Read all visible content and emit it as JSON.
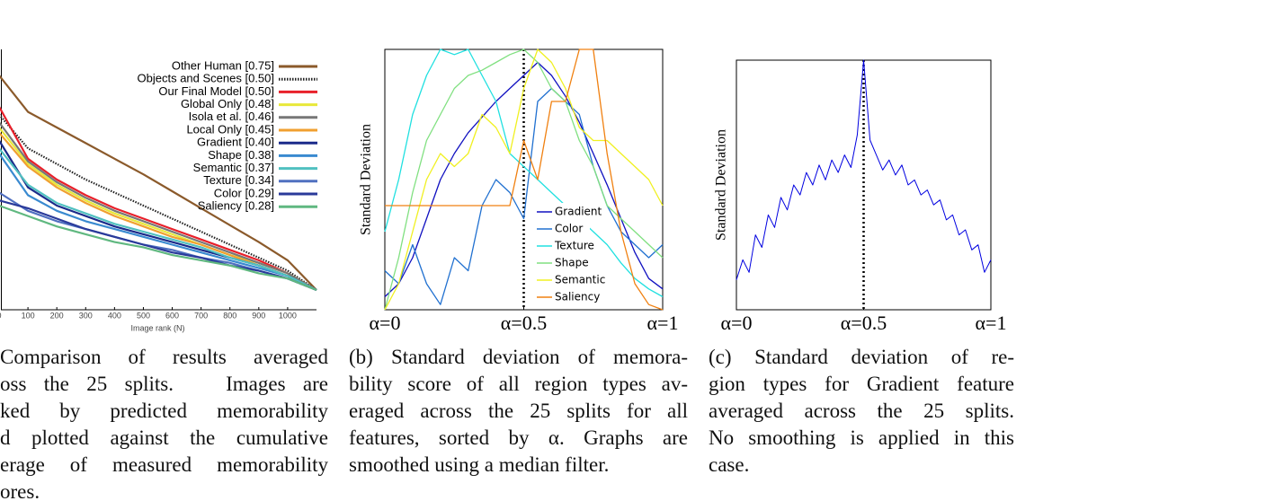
{
  "chart_data": [
    {
      "type": "line",
      "x_label": "Image rank (N)",
      "legend": "upper right",
      "x": [
        0,
        100,
        200,
        300,
        400,
        500,
        600,
        700,
        800,
        900,
        1000,
        1100
      ],
      "xlim": [
        0,
        1100
      ],
      "ylim": [
        0,
        1
      ],
      "xticks": [
        0,
        100,
        200,
        300,
        400,
        500,
        600,
        700,
        800,
        900,
        1000
      ],
      "series": [
        {
          "name": "Other Human [0.75]",
          "color": "#8b5a2b",
          "values": [
            0.9,
            0.76,
            0.7,
            0.64,
            0.58,
            0.52,
            0.455,
            0.39,
            0.325,
            0.26,
            0.19,
            0.076
          ]
        },
        {
          "name": "Objects and Scenes [0.50]",
          "color": "#222222",
          "dash": "dotted",
          "values": [
            0.75,
            0.62,
            0.56,
            0.5,
            0.45,
            0.4,
            0.35,
            0.3,
            0.25,
            0.2,
            0.15,
            0.076
          ]
        },
        {
          "name": "Our Final Model [0.50]",
          "color": "#e8202a",
          "values": [
            0.78,
            0.58,
            0.5,
            0.44,
            0.39,
            0.35,
            0.31,
            0.27,
            0.23,
            0.19,
            0.14,
            0.076
          ]
        },
        {
          "name": "Global Only [0.48]",
          "color": "#e8e83a",
          "values": [
            0.7,
            0.56,
            0.48,
            0.42,
            0.37,
            0.33,
            0.29,
            0.25,
            0.21,
            0.18,
            0.14,
            0.076
          ]
        },
        {
          "name": "Isola et al. [0.46]",
          "color": "#777777",
          "values": [
            0.72,
            0.57,
            0.49,
            0.43,
            0.38,
            0.34,
            0.3,
            0.26,
            0.22,
            0.18,
            0.14,
            0.076
          ]
        },
        {
          "name": "Local Only [0.45]",
          "color": "#f0a030",
          "values": [
            0.68,
            0.55,
            0.47,
            0.41,
            0.36,
            0.32,
            0.28,
            0.25,
            0.21,
            0.17,
            0.13,
            0.076
          ]
        },
        {
          "name": "Gradient [0.40]",
          "color": "#1a2a8a",
          "values": [
            0.65,
            0.47,
            0.4,
            0.36,
            0.32,
            0.29,
            0.26,
            0.23,
            0.2,
            0.17,
            0.13,
            0.076
          ]
        },
        {
          "name": "Shape [0.38]",
          "color": "#3a8ad0",
          "values": [
            0.6,
            0.44,
            0.38,
            0.34,
            0.31,
            0.28,
            0.25,
            0.22,
            0.19,
            0.16,
            0.13,
            0.076
          ]
        },
        {
          "name": "Semantic [0.37]",
          "color": "#50c0c0",
          "values": [
            0.62,
            0.48,
            0.41,
            0.37,
            0.33,
            0.3,
            0.27,
            0.24,
            0.2,
            0.17,
            0.13,
            0.076
          ]
        },
        {
          "name": "Texture [0.34]",
          "color": "#5070c0",
          "values": [
            0.45,
            0.38,
            0.34,
            0.31,
            0.28,
            0.25,
            0.23,
            0.2,
            0.18,
            0.15,
            0.12,
            0.076
          ]
        },
        {
          "name": "Color [0.29]",
          "color": "#2a3a9a",
          "values": [
            0.42,
            0.39,
            0.35,
            0.31,
            0.28,
            0.25,
            0.22,
            0.2,
            0.17,
            0.15,
            0.12,
            0.076
          ]
        },
        {
          "name": "Saliency [0.28]",
          "color": "#60b880",
          "values": [
            0.4,
            0.36,
            0.32,
            0.29,
            0.26,
            0.24,
            0.21,
            0.19,
            0.17,
            0.14,
            0.12,
            0.076
          ]
        }
      ],
      "caption_lines": [
        "Comparison of results averaged",
        "oss the 25 splits.   Images are",
        "ked by predicted memorability",
        "d plotted against the cumulative",
        "erage of measured memorability",
        "ores."
      ]
    },
    {
      "type": "line",
      "y_label": "Standard Deviation",
      "legend": "lower right",
      "x": [
        0,
        0.05,
        0.1,
        0.15,
        0.2,
        0.25,
        0.3,
        0.35,
        0.4,
        0.45,
        0.5,
        0.55,
        0.6,
        0.65,
        0.7,
        0.75,
        0.8,
        0.85,
        0.9,
        0.95,
        1
      ],
      "xlim": [
        0,
        1
      ],
      "ylim": [
        0,
        1
      ],
      "vline": 0.5,
      "xticks": [
        {
          "value": 0,
          "label": "α=0"
        },
        {
          "value": 0.5,
          "label": "α=0.5"
        },
        {
          "value": 1,
          "label": "α=1"
        }
      ],
      "series": [
        {
          "name": "Gradient",
          "color": "#1010c0",
          "values": [
            0.05,
            0.1,
            0.2,
            0.35,
            0.5,
            0.6,
            0.68,
            0.74,
            0.8,
            0.85,
            0.9,
            0.95,
            0.9,
            0.82,
            0.72,
            0.6,
            0.48,
            0.35,
            0.22,
            0.12,
            0.08
          ]
        },
        {
          "name": "Color",
          "color": "#2070d0",
          "values": [
            0.15,
            0.1,
            0.25,
            0.1,
            0.02,
            0.2,
            0.15,
            0.4,
            0.5,
            0.45,
            0.35,
            0.8,
            0.85,
            0.8,
            0.75,
            0.55,
            0.4,
            0.3,
            0.25,
            0.2,
            0.25
          ]
        },
        {
          "name": "Texture",
          "color": "#20e0e0",
          "values": [
            0.3,
            0.5,
            0.75,
            0.9,
            1.0,
            0.98,
            1.0,
            0.9,
            0.8,
            0.6,
            0.55,
            0.5,
            0.45,
            0.4,
            0.35,
            0.3,
            0.25,
            0.18,
            0.12,
            0.08,
            0.05
          ]
        },
        {
          "name": "Shape",
          "color": "#80e080",
          "values": [
            0.0,
            0.2,
            0.45,
            0.65,
            0.75,
            0.85,
            0.9,
            0.92,
            0.95,
            0.98,
            1.0,
            0.95,
            0.85,
            0.8,
            0.65,
            0.55,
            0.4,
            0.35,
            0.3,
            0.25,
            0.2
          ]
        },
        {
          "name": "Semantic",
          "color": "#f0f020",
          "values": [
            0.0,
            0.1,
            0.3,
            0.5,
            0.6,
            0.55,
            0.6,
            0.75,
            0.7,
            0.6,
            0.85,
            1.0,
            0.95,
            0.85,
            0.7,
            0.65,
            0.65,
            0.6,
            0.55,
            0.5,
            0.4
          ]
        },
        {
          "name": "Saliency",
          "color": "#f08010",
          "values": [
            0.4,
            0.4,
            0.4,
            0.4,
            0.4,
            0.4,
            0.4,
            0.4,
            0.4,
            0.4,
            0.65,
            0.5,
            0.8,
            0.8,
            1.0,
            1.0,
            0.6,
            0.3,
            0.1,
            0.02,
            0.0
          ]
        }
      ],
      "caption_lines": [
        "(b) Standard deviation of memora-",
        "bility score of all region types av-",
        "eraged across the 25 splits for all",
        "features, sorted by α. Graphs are",
        "smoothed using a median filter."
      ]
    },
    {
      "type": "line",
      "y_label": "Standard Deviation",
      "x": [
        0,
        0.025,
        0.05,
        0.075,
        0.1,
        0.125,
        0.15,
        0.175,
        0.2,
        0.225,
        0.25,
        0.275,
        0.3,
        0.325,
        0.35,
        0.375,
        0.4,
        0.425,
        0.45,
        0.475,
        0.5,
        0.525,
        0.55,
        0.575,
        0.6,
        0.625,
        0.65,
        0.675,
        0.7,
        0.725,
        0.75,
        0.775,
        0.8,
        0.825,
        0.85,
        0.875,
        0.9,
        0.925,
        0.95,
        0.975,
        1
      ],
      "xlim": [
        0,
        1
      ],
      "ylim": [
        0,
        1
      ],
      "vline": 0.5,
      "xticks": [
        {
          "value": 0,
          "label": "α=0"
        },
        {
          "value": 0.5,
          "label": "α=0.5"
        },
        {
          "value": 1,
          "label": "α=1"
        }
      ],
      "series": [
        {
          "color": "#0000e0",
          "values": [
            0.12,
            0.2,
            0.15,
            0.3,
            0.25,
            0.38,
            0.33,
            0.45,
            0.4,
            0.5,
            0.46,
            0.55,
            0.5,
            0.58,
            0.52,
            0.6,
            0.55,
            0.62,
            0.57,
            0.7,
            1.0,
            0.68,
            0.62,
            0.56,
            0.6,
            0.54,
            0.58,
            0.5,
            0.52,
            0.46,
            0.48,
            0.42,
            0.44,
            0.36,
            0.38,
            0.3,
            0.32,
            0.24,
            0.26,
            0.15,
            0.2
          ]
        }
      ],
      "caption_lines": [
        "(c) Standard deviation of re-",
        "gion types for Gradient feature",
        "averaged across the 25 splits.",
        "No smoothing is applied in this",
        "case."
      ]
    }
  ]
}
